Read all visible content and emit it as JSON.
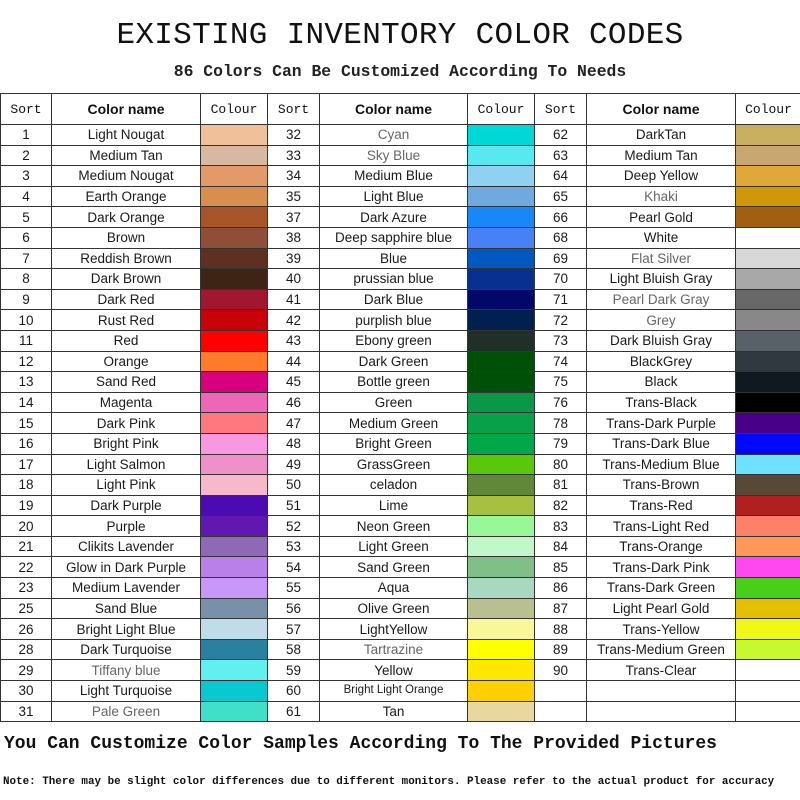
{
  "title": "EXISTING INVENTORY COLOR CODES",
  "subtitle": "86 Colors Can Be Customized According To Needs",
  "headers": {
    "sort": "Sort",
    "name": "Color name",
    "colour": "Colour"
  },
  "columns": [
    [
      {
        "sort": "1",
        "name": "Light Nougat",
        "color": "#f0c09a"
      },
      {
        "sort": "2",
        "name": "Medium Tan",
        "color": "#d8b8a0"
      },
      {
        "sort": "3",
        "name": "Medium Nougat",
        "color": "#e4996a"
      },
      {
        "sort": "4",
        "name": "Earth Orange",
        "color": "#d88f4e"
      },
      {
        "sort": "5",
        "name": "Dark Orange",
        "color": "#a8552a"
      },
      {
        "sort": "6",
        "name": "Brown",
        "color": "#8f4e38"
      },
      {
        "sort": "7",
        "name": "Reddish Brown",
        "color": "#5e3022"
      },
      {
        "sort": "8",
        "name": "Dark Brown",
        "color": "#3e2414"
      },
      {
        "sort": "9",
        "name": "Dark Red",
        "color": "#a01830"
      },
      {
        "sort": "10",
        "name": "Rust Red",
        "color": "#c80008"
      },
      {
        "sort": "11",
        "name": "Red",
        "color": "#ff0000"
      },
      {
        "sort": "12",
        "name": "Orange",
        "color": "#ff7a2a"
      },
      {
        "sort": "13",
        "name": "Sand Red",
        "color": "#d8007c"
      },
      {
        "sort": "14",
        "name": "Magenta",
        "color": "#ee66b8"
      },
      {
        "sort": "15",
        "name": "Dark Pink",
        "color": "#ff7880"
      },
      {
        "sort": "16",
        "name": "Bright Pink",
        "color": "#f898e0"
      },
      {
        "sort": "17",
        "name": "Light Salmon",
        "color": "#f090c8"
      },
      {
        "sort": "18",
        "name": "Light Pink",
        "color": "#f8b8cc"
      },
      {
        "sort": "19",
        "name": "Dark Purple",
        "color": "#4a0cb0"
      },
      {
        "sort": "20",
        "name": "Purple",
        "color": "#6018b0"
      },
      {
        "sort": "21",
        "name": "Clikits Lavender",
        "color": "#9068b8"
      },
      {
        "sort": "22",
        "name": "Glow in Dark Purple",
        "color": "#b880e8"
      },
      {
        "sort": "23",
        "name": "Medium Lavender",
        "color": "#c898f8"
      },
      {
        "sort": "25",
        "name": "Sand Blue",
        "color": "#7890a8"
      },
      {
        "sort": "26",
        "name": "Bright Light Blue",
        "color": "#c0dce8"
      },
      {
        "sort": "28",
        "name": "Dark Turquoise",
        "color": "#2a80a0"
      },
      {
        "sort": "29",
        "name": "Tiffany blue",
        "color": "#60f0f0",
        "muted": true
      },
      {
        "sort": "30",
        "name": "Light Turquoise",
        "color": "#08c8d0"
      },
      {
        "sort": "31",
        "name": "Pale Green",
        "color": "#40e0c8",
        "muted": true
      }
    ],
    [
      {
        "sort": "32",
        "name": "Cyan",
        "color": "#00d8d8",
        "muted": true
      },
      {
        "sort": "33",
        "name": "Sky Blue",
        "color": "#58e8f0",
        "muted": true
      },
      {
        "sort": "34",
        "name": "Medium Blue",
        "color": "#90d0f0"
      },
      {
        "sort": "35",
        "name": "Light Blue",
        "color": "#70a8e0"
      },
      {
        "sort": "37",
        "name": "Dark Azure",
        "color": "#1888f8"
      },
      {
        "sort": "38",
        "name": "Deep sapphire blue",
        "color": "#4880f8"
      },
      {
        "sort": "39",
        "name": "Blue",
        "color": "#0058c0"
      },
      {
        "sort": "40",
        "name": "prussian blue",
        "color": "#083090"
      },
      {
        "sort": "41",
        "name": "Dark Blue",
        "color": "#000868"
      },
      {
        "sort": "42",
        "name": "purplish blue",
        "color": "#002050"
      },
      {
        "sort": "43",
        "name": "Ebony green",
        "color": "#203028"
      },
      {
        "sort": "44",
        "name": "Dark Green",
        "color": "#005008"
      },
      {
        "sort": "45",
        "name": "Bottle green",
        "color": "#005008"
      },
      {
        "sort": "46",
        "name": "Green",
        "color": "#089848"
      },
      {
        "sort": "47",
        "name": "Medium Green",
        "color": "#08a048"
      },
      {
        "sort": "48",
        "name": "Bright Green",
        "color": "#00a848"
      },
      {
        "sort": "49",
        "name": "GrassGreen",
        "color": "#58c808"
      },
      {
        "sort": "50",
        "name": "celadon",
        "color": "#608838"
      },
      {
        "sort": "51",
        "name": "Lime",
        "color": "#a8c040"
      },
      {
        "sort": "52",
        "name": "Neon Green",
        "color": "#98f898"
      },
      {
        "sort": "53",
        "name": "Light Green",
        "color": "#c0f8c8"
      },
      {
        "sort": "54",
        "name": "Sand Green",
        "color": "#80c088"
      },
      {
        "sort": "55",
        "name": "Aqua",
        "color": "#a8d8c0"
      },
      {
        "sort": "56",
        "name": "Olive Green",
        "color": "#b8c090"
      },
      {
        "sort": "57",
        "name": "LightYellow",
        "color": "#f8f898"
      },
      {
        "sort": "58",
        "name": "Tartrazine",
        "color": "#ffff00",
        "muted": true
      },
      {
        "sort": "59",
        "name": "Yellow",
        "color": "#ffe800"
      },
      {
        "sort": "60",
        "name": "Bright Light Orange",
        "color": "#ffd000",
        "small": true
      },
      {
        "sort": "61",
        "name": "Tan",
        "color": "#e8d8a0"
      }
    ],
    [
      {
        "sort": "62",
        "name": "DarkTan",
        "color": "#c8b060"
      },
      {
        "sort": "63",
        "name": "Medium Tan",
        "color": "#c8a870"
      },
      {
        "sort": "64",
        "name": "Deep  Yellow",
        "color": "#e0a838"
      },
      {
        "sort": "65",
        "name": "Khaki",
        "color": "#d09808",
        "muted": true
      },
      {
        "sort": "66",
        "name": "Pearl Gold",
        "color": "#a06010"
      },
      {
        "sort": "68",
        "name": "White",
        "color": "#ffffff"
      },
      {
        "sort": "69",
        "name": "Flat Silver",
        "color": "#d8d8d8",
        "muted": true
      },
      {
        "sort": "70",
        "name": "Light Bluish Gray",
        "color": "#a8a8a8"
      },
      {
        "sort": "71",
        "name": "Pearl Dark Gray",
        "color": "#686868",
        "muted": true
      },
      {
        "sort": "72",
        "name": "Grey",
        "color": "#888888",
        "muted": true
      },
      {
        "sort": "73",
        "name": "Dark Bluish Gray",
        "color": "#586068"
      },
      {
        "sort": "74",
        "name": "BlackGrey",
        "color": "#303840"
      },
      {
        "sort": "75",
        "name": "Black",
        "color": "#101820"
      },
      {
        "sort": "76",
        "name": "Trans-Black",
        "color": "#000000"
      },
      {
        "sort": "78",
        "name": "Trans-Dark Purple",
        "color": "#480088"
      },
      {
        "sort": "79",
        "name": "Trans-Dark Blue",
        "color": "#0008f8"
      },
      {
        "sort": "80",
        "name": "Trans-Medium Blue",
        "color": "#70e0ff"
      },
      {
        "sort": "81",
        "name": "Trans-Brown",
        "color": "#584838"
      },
      {
        "sort": "82",
        "name": "Trans-Red",
        "color": "#b02020"
      },
      {
        "sort": "83",
        "name": "Trans-Light Red",
        "color": "#ff8068"
      },
      {
        "sort": "84",
        "name": "Trans-Orange",
        "color": "#ff9858"
      },
      {
        "sort": "85",
        "name": "Trans-Dark Pink",
        "color": "#ff48f0"
      },
      {
        "sort": "86",
        "name": "Trans-Dark Green",
        "color": "#48d018"
      },
      {
        "sort": "87",
        "name": "Light Pearl Gold",
        "color": "#e0c000"
      },
      {
        "sort": "88",
        "name": "Trans-Yellow",
        "color": "#f0f818"
      },
      {
        "sort": "89",
        "name": "Trans-Medium Green",
        "color": "#c8f830"
      },
      {
        "sort": "90",
        "name": "Trans-Clear",
        "color": "#ffffff"
      }
    ]
  ],
  "footer": {
    "customize": "You Can Customize Color Samples According To The Provided Pictures",
    "note": "Note: There may be slight color differences due to different monitors. Please refer to the actual product for accuracy"
  }
}
